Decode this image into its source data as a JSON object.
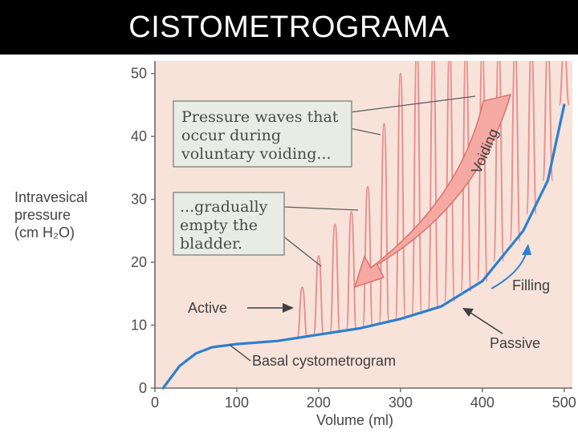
{
  "title": "CISTOMETROGRAMA",
  "colors": {
    "plot_background": "#f7e3da",
    "basal_curve": "#2f7fcf",
    "pressure_waves": "#ec8f8f",
    "arrow_fill": "#f4a9a3",
    "arrow_stroke": "#d9736b",
    "callout_fill": "#e9ece5",
    "callout_stroke": "#8a8f86"
  },
  "callouts": {
    "voiding_waves": [
      "Pressure waves that",
      "occur during",
      "voluntary voiding..."
    ],
    "empty_bladder": [
      "...gradually",
      "empty the",
      "bladder."
    ]
  },
  "annotations": {
    "voiding": "Voiding",
    "active": "Active",
    "filling": "Filling",
    "passive": "Passive",
    "basal": "Basal cystometrogram"
  },
  "chart_data": {
    "type": "line",
    "title": "",
    "xlabel": "Volume (ml)",
    "ylabel": [
      "Intravesical",
      "pressure",
      "(cm H₂O)"
    ],
    "xlim": [
      0,
      510
    ],
    "ylim": [
      0,
      52
    ],
    "x_ticks": [
      "0",
      "100",
      "200",
      "300",
      "400",
      "500"
    ],
    "y_ticks": [
      "0",
      "10",
      "20",
      "30",
      "40",
      "50"
    ],
    "grid": false,
    "basal_curve": {
      "x": [
        10,
        30,
        50,
        70,
        100,
        150,
        200,
        250,
        300,
        350,
        400,
        450,
        480,
        500
      ],
      "y": [
        0,
        3.5,
        5.5,
        6.5,
        7,
        7.5,
        8.5,
        9.5,
        11,
        13,
        17,
        25,
        33,
        45
      ]
    },
    "pressure_waves": {
      "x": [
        180,
        200,
        220,
        240,
        260,
        280,
        300,
        320,
        340,
        360,
        380,
        400,
        420,
        440,
        460,
        480,
        500
      ],
      "peak": [
        16,
        21,
        26,
        28,
        32,
        42,
        50,
        54,
        54,
        54,
        54,
        54,
        54,
        54,
        54,
        54,
        54
      ]
    }
  }
}
